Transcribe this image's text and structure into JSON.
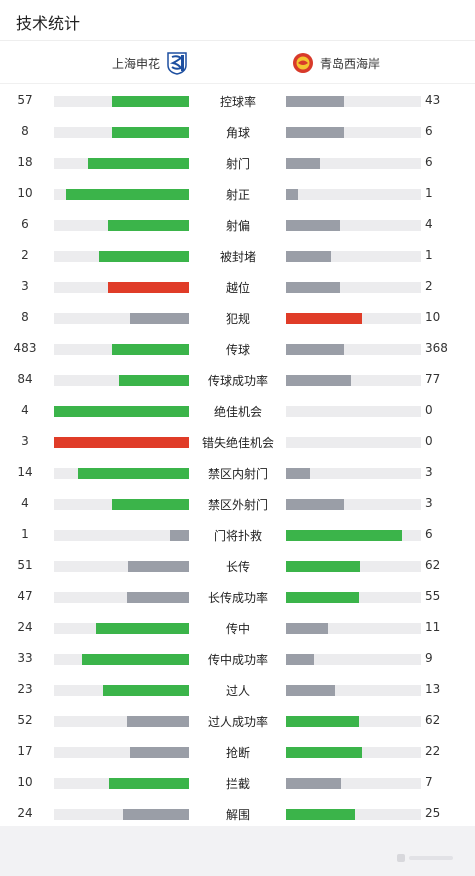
{
  "header": {
    "title": "技术统计"
  },
  "teams": {
    "home": "上海申花",
    "away": "青岛西海岸"
  },
  "colors": {
    "green": "#3bb44a",
    "gray": "#9a9ea7",
    "red": "#e03c28",
    "track": "#ececee"
  },
  "stats": [
    {
      "label": "控球率",
      "home": "57",
      "away": "43",
      "hf": 0.57,
      "af": 0.43,
      "hc": "green",
      "ac": "gray"
    },
    {
      "label": "角球",
      "home": "8",
      "away": "6",
      "hf": 0.57,
      "af": 0.43,
      "hc": "green",
      "ac": "gray"
    },
    {
      "label": "射门",
      "home": "18",
      "away": "6",
      "hf": 0.75,
      "af": 0.25,
      "hc": "green",
      "ac": "gray"
    },
    {
      "label": "射正",
      "home": "10",
      "away": "1",
      "hf": 0.91,
      "af": 0.09,
      "hc": "green",
      "ac": "gray"
    },
    {
      "label": "射偏",
      "home": "6",
      "away": "4",
      "hf": 0.6,
      "af": 0.4,
      "hc": "green",
      "ac": "gray"
    },
    {
      "label": "被封堵",
      "home": "2",
      "away": "1",
      "hf": 0.67,
      "af": 0.33,
      "hc": "green",
      "ac": "gray"
    },
    {
      "label": "越位",
      "home": "3",
      "away": "2",
      "hf": 0.6,
      "af": 0.4,
      "hc": "red",
      "ac": "gray"
    },
    {
      "label": "犯规",
      "home": "8",
      "away": "10",
      "hf": 0.44,
      "af": 0.56,
      "hc": "gray",
      "ac": "red"
    },
    {
      "label": "传球",
      "home": "483",
      "away": "368",
      "hf": 0.57,
      "af": 0.43,
      "hc": "green",
      "ac": "gray"
    },
    {
      "label": "传球成功率",
      "home": "84",
      "away": "77",
      "hf": 0.52,
      "af": 0.48,
      "hc": "green",
      "ac": "gray"
    },
    {
      "label": "绝佳机会",
      "home": "4",
      "away": "0",
      "hf": 1.0,
      "af": 0.0,
      "hc": "green",
      "ac": "gray"
    },
    {
      "label": "错失绝佳机会",
      "home": "3",
      "away": "0",
      "hf": 1.0,
      "af": 0.0,
      "hc": "red",
      "ac": "gray"
    },
    {
      "label": "禁区内射门",
      "home": "14",
      "away": "3",
      "hf": 0.82,
      "af": 0.18,
      "hc": "green",
      "ac": "gray"
    },
    {
      "label": "禁区外射门",
      "home": "4",
      "away": "3",
      "hf": 0.57,
      "af": 0.43,
      "hc": "green",
      "ac": "gray"
    },
    {
      "label": "门将扑救",
      "home": "1",
      "away": "6",
      "hf": 0.14,
      "af": 0.86,
      "hc": "gray",
      "ac": "green"
    },
    {
      "label": "长传",
      "home": "51",
      "away": "62",
      "hf": 0.45,
      "af": 0.55,
      "hc": "gray",
      "ac": "green"
    },
    {
      "label": "长传成功率",
      "home": "47",
      "away": "55",
      "hf": 0.46,
      "af": 0.54,
      "hc": "gray",
      "ac": "green"
    },
    {
      "label": "传中",
      "home": "24",
      "away": "11",
      "hf": 0.69,
      "af": 0.31,
      "hc": "green",
      "ac": "gray"
    },
    {
      "label": "传中成功率",
      "home": "33",
      "away": "9",
      "hf": 0.79,
      "af": 0.21,
      "hc": "green",
      "ac": "gray"
    },
    {
      "label": "过人",
      "home": "23",
      "away": "13",
      "hf": 0.64,
      "af": 0.36,
      "hc": "green",
      "ac": "gray"
    },
    {
      "label": "过人成功率",
      "home": "52",
      "away": "62",
      "hf": 0.46,
      "af": 0.54,
      "hc": "gray",
      "ac": "green"
    },
    {
      "label": "抢断",
      "home": "17",
      "away": "22",
      "hf": 0.44,
      "af": 0.56,
      "hc": "gray",
      "ac": "green"
    },
    {
      "label": "拦截",
      "home": "10",
      "away": "7",
      "hf": 0.59,
      "af": 0.41,
      "hc": "green",
      "ac": "gray"
    },
    {
      "label": "解围",
      "home": "24",
      "away": "25",
      "hf": 0.49,
      "af": 0.51,
      "hc": "gray",
      "ac": "green"
    }
  ]
}
